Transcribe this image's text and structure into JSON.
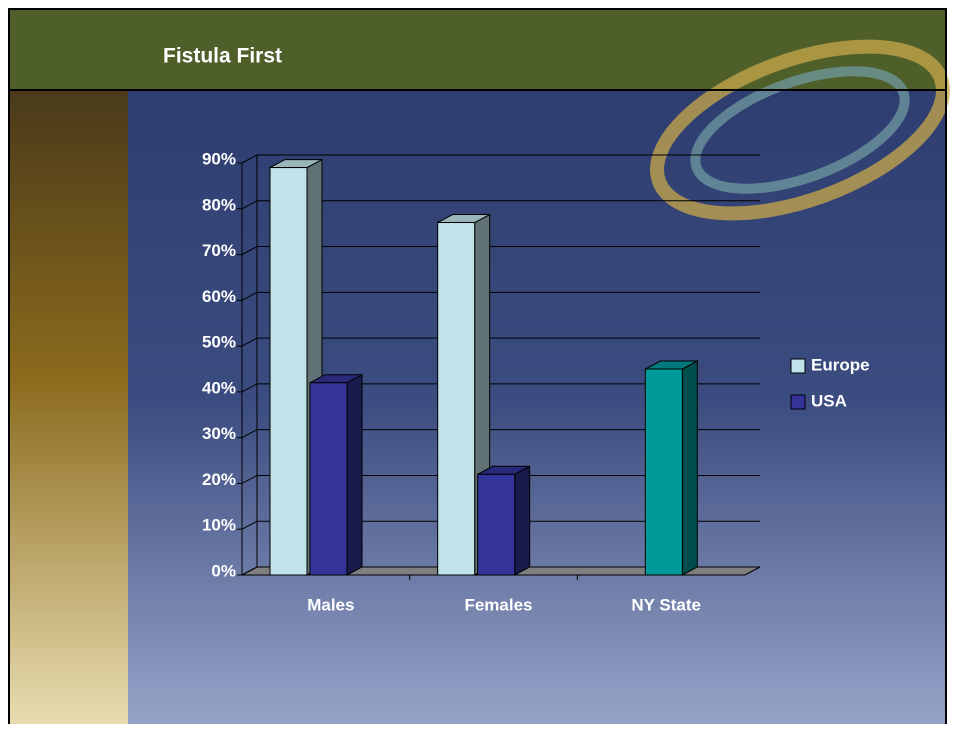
{
  "chart_data": {
    "type": "bar3d",
    "title": "Fistula First",
    "categories": [
      "Males",
      "Females",
      "NY State"
    ],
    "series": [
      {
        "name": "Europe",
        "color": "#bfe3e8",
        "values": [
          89,
          77,
          null
        ]
      },
      {
        "name": "USA",
        "color": "#333399",
        "values": [
          42,
          22,
          45
        ],
        "point_colors": [
          "#333399",
          "#333399",
          "#009999"
        ]
      }
    ],
    "ylim": [
      0,
      90
    ],
    "yticks": [
      {
        "value": 0,
        "label": "0%"
      },
      {
        "value": 10,
        "label": "10%"
      },
      {
        "value": 20,
        "label": "20%"
      },
      {
        "value": 30,
        "label": "30%"
      },
      {
        "value": 40,
        "label": "40%"
      },
      {
        "value": 50,
        "label": "50%"
      },
      {
        "value": 60,
        "label": "60%"
      },
      {
        "value": 70,
        "label": "70%"
      },
      {
        "value": 80,
        "label": "80%"
      },
      {
        "value": 90,
        "label": "90%"
      }
    ],
    "grid": true,
    "legend": "right"
  }
}
